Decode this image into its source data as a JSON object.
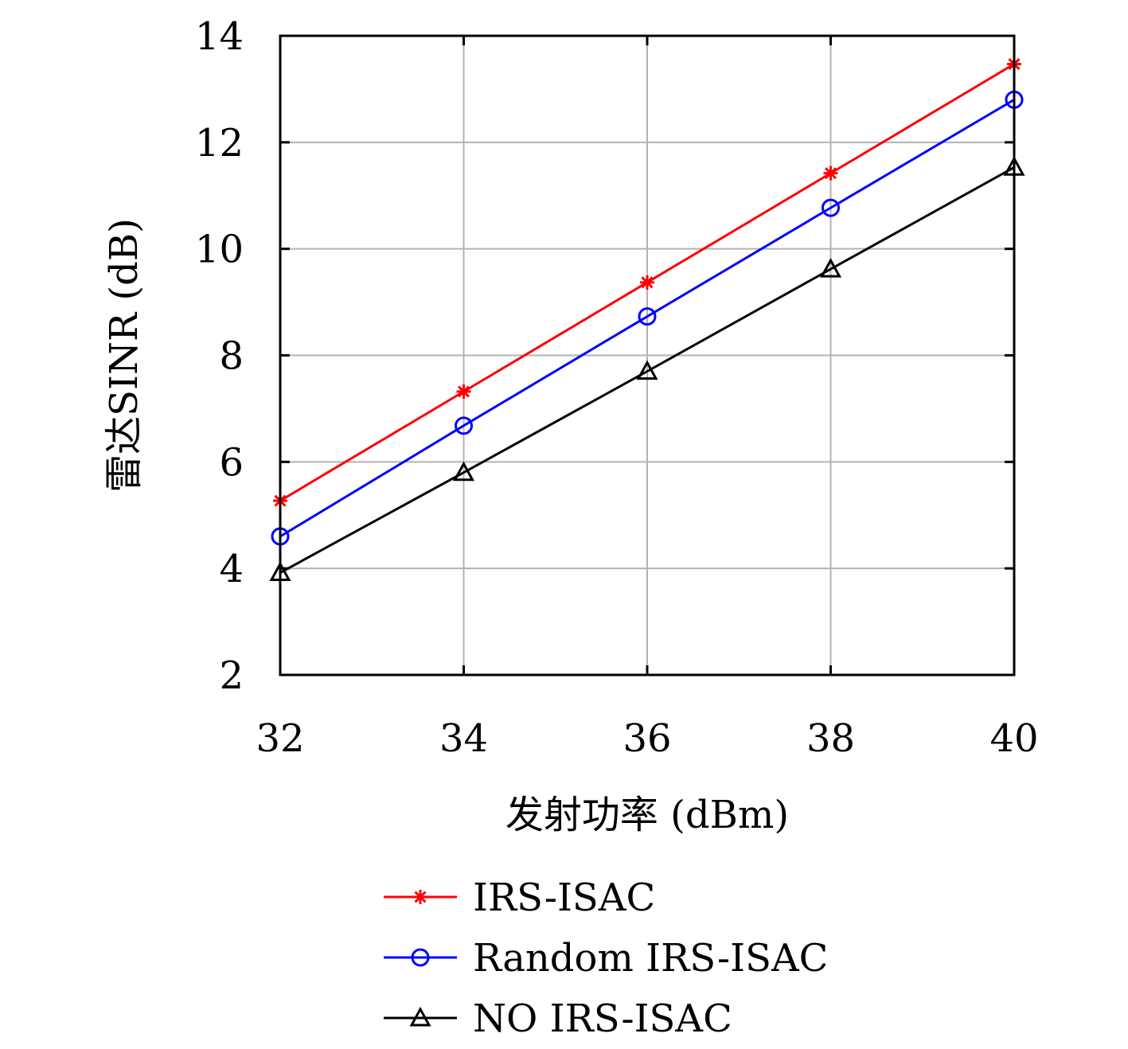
{
  "chart_data": {
    "type": "line",
    "xlabel": "发射功率 (dBm)",
    "ylabel": "雷达SINR (dB)",
    "x": [
      32,
      34,
      36,
      38,
      40
    ],
    "xlim": [
      32,
      40
    ],
    "ylim": [
      2,
      14
    ],
    "xticks": [
      32,
      34,
      36,
      38,
      40
    ],
    "yticks": [
      2,
      4,
      6,
      8,
      10,
      12,
      14
    ],
    "grid": true,
    "legend_position": "bottom",
    "series": [
      {
        "name": "IRS-ISAC",
        "color": "#ff0000",
        "marker": "asterisk",
        "values": [
          5.27,
          7.32,
          9.37,
          11.42,
          13.47
        ]
      },
      {
        "name": "Random IRS-ISAC",
        "color": "#0000ff",
        "marker": "circle",
        "values": [
          4.6,
          6.68,
          8.73,
          10.77,
          12.8
        ]
      },
      {
        "name": "NO IRS-ISAC",
        "color": "#000000",
        "marker": "triangle",
        "values": [
          3.92,
          5.8,
          7.7,
          9.62,
          11.53
        ]
      }
    ]
  }
}
